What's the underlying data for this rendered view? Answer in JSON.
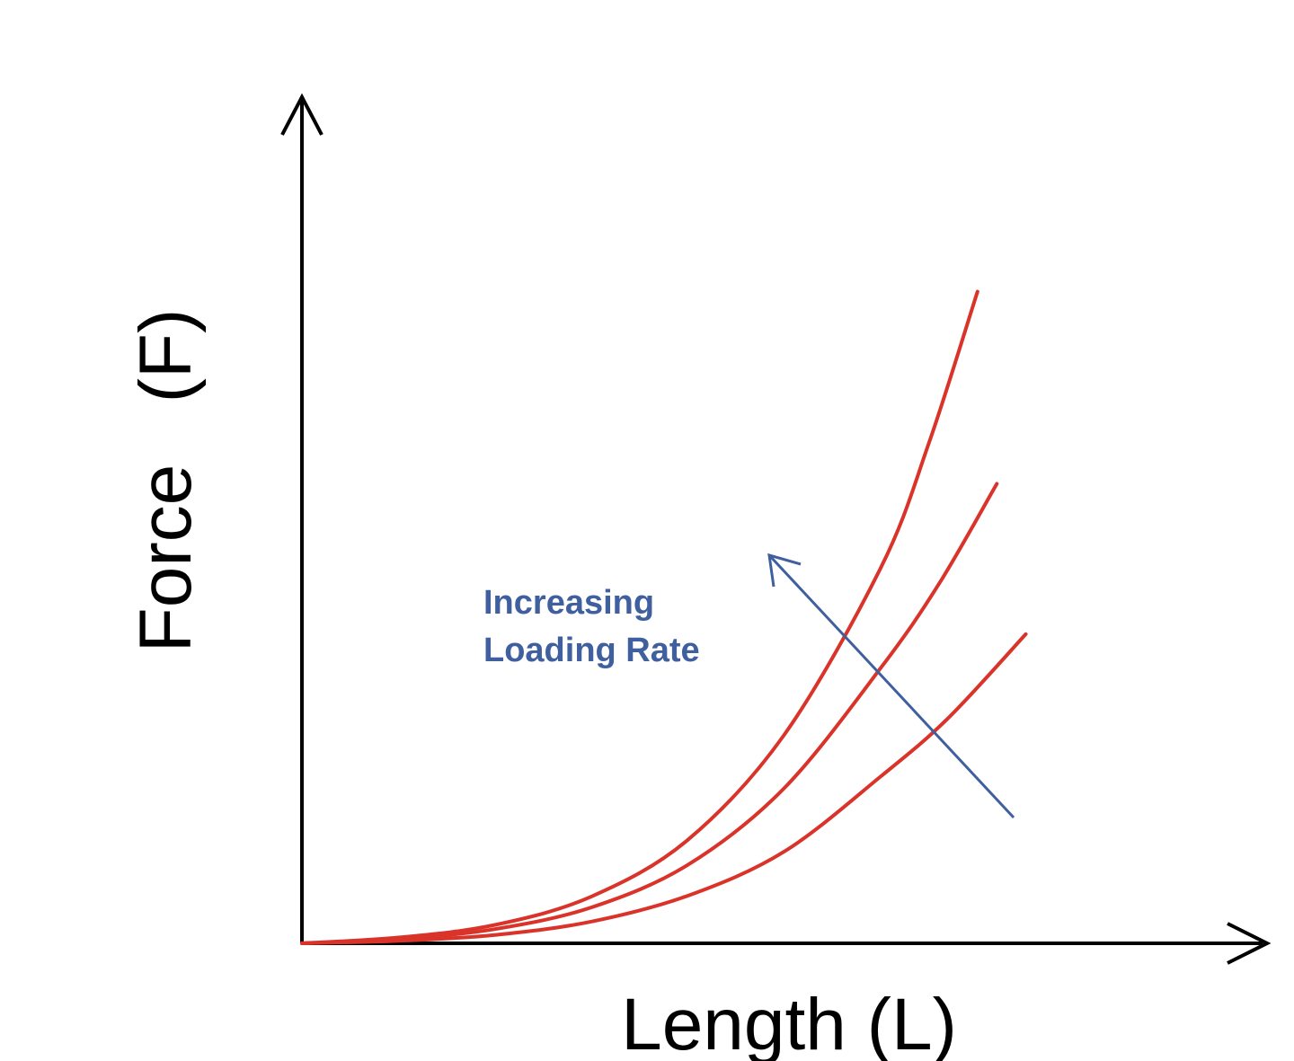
{
  "chart_data": {
    "type": "line",
    "title": "",
    "xlabel": "Length (L)",
    "ylabel": "Force   (F)",
    "grid": false,
    "legend": "none",
    "ticks": "none",
    "xlim": [
      0,
      1
    ],
    "ylim": [
      0,
      1
    ],
    "annotation": {
      "lines": [
        "Increasing",
        "Loading Rate"
      ],
      "arrow_direction": "up-left"
    },
    "series": [
      {
        "x": [
          0,
          0.1,
          0.2,
          0.3,
          0.4,
          0.5,
          0.6,
          0.65,
          0.7
        ],
        "y": [
          0,
          0.007,
          0.022,
          0.056,
          0.124,
          0.25,
          0.45,
          0.6,
          0.78
        ]
      },
      {
        "x": [
          0,
          0.1,
          0.2,
          0.3,
          0.4,
          0.5,
          0.6,
          0.66,
          0.72
        ],
        "y": [
          0,
          0.005,
          0.017,
          0.043,
          0.094,
          0.186,
          0.33,
          0.43,
          0.55
        ]
      },
      {
        "x": [
          0,
          0.1,
          0.2,
          0.3,
          0.4,
          0.5,
          0.6,
          0.67,
          0.75
        ],
        "y": [
          0,
          0.003,
          0.01,
          0.026,
          0.057,
          0.11,
          0.2,
          0.27,
          0.37
        ]
      }
    ],
    "colors": {
      "curves": "#d9332a",
      "annotation": "#3f5f9f",
      "axis": "#000000"
    }
  }
}
